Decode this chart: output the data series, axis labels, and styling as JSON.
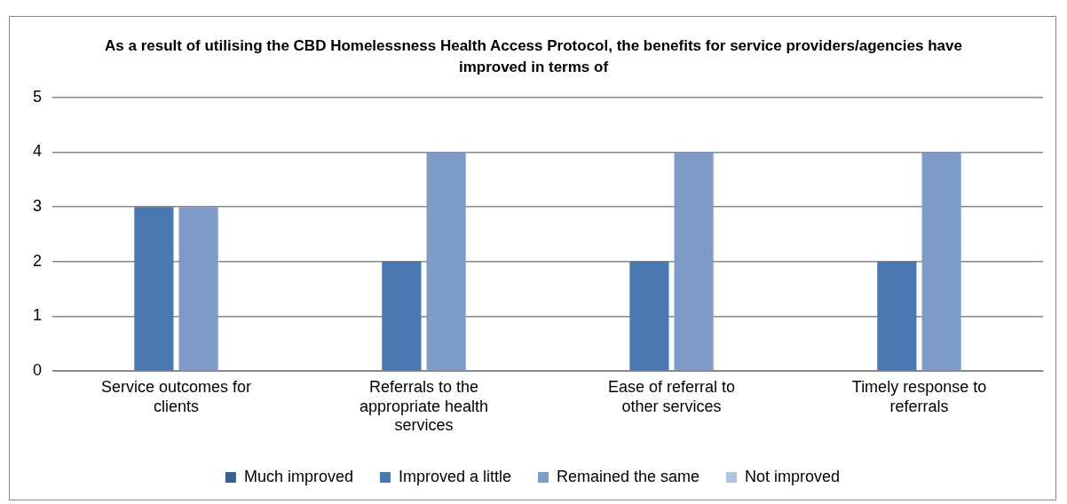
{
  "chart_data": {
    "type": "bar",
    "title": "As a result of utilising the CBD Homelessness Health Access Protocol, the benefits for service providers/agencies have improved in terms of",
    "categories": [
      "Service outcomes for clients",
      "Referrals to the appropriate health services",
      "Ease of referral to other services",
      "Timely response to referrals"
    ],
    "series": [
      {
        "name": "Much improved",
        "color": "#3a5f8f",
        "values": [
          0,
          0,
          0,
          0
        ]
      },
      {
        "name": "Improved a little",
        "color": "#4a78b0",
        "values": [
          3,
          2,
          2,
          2
        ]
      },
      {
        "name": "Remained the same",
        "color": "#7f9cc8",
        "values": [
          3,
          4,
          4,
          4
        ]
      },
      {
        "name": "Not improved",
        "color": "#b0c2de",
        "values": [
          0,
          0,
          0,
          0
        ]
      }
    ],
    "ylim": [
      0,
      5
    ],
    "yticks": [
      0,
      1,
      2,
      3,
      4,
      5
    ],
    "grid": "y",
    "legend": "bottom"
  }
}
